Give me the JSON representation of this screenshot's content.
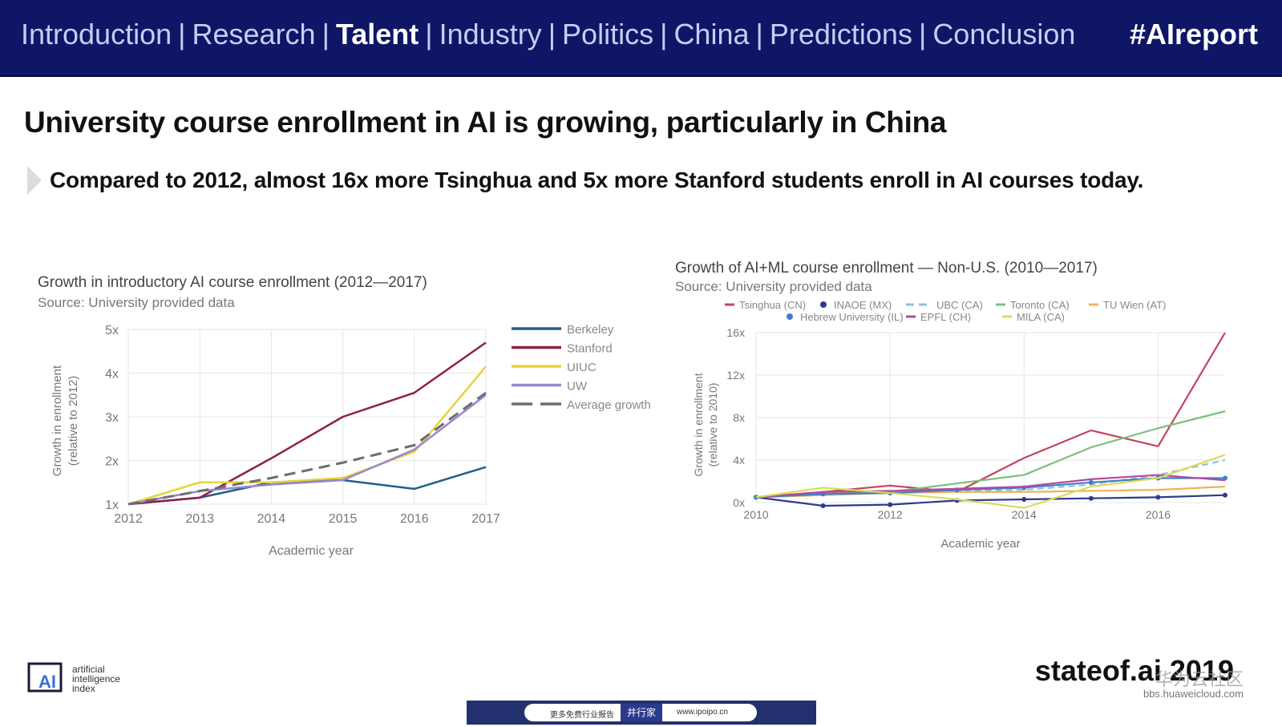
{
  "header": {
    "nav": [
      "Introduction",
      "Research",
      "Talent",
      "Industry",
      "Politics",
      "China",
      "Predictions",
      "Conclusion"
    ],
    "active_index": 2,
    "separator": "|",
    "hashtag": "#AIreport"
  },
  "slide": {
    "title": "University course enrollment in AI is growing, particularly in China",
    "subtitle": "Compared to 2012, almost 16x more Tsinghua and 5x more Stanford students enroll in AI courses today."
  },
  "charts": {
    "left": {
      "title": "Growth in introductory AI course enrollment (2012—2017)",
      "source": "Source: University provided data",
      "ylabel_line1": "Growth in enrollment",
      "ylabel_line2": "(relative to 2012)",
      "xlabel": "Academic year"
    },
    "right": {
      "title": "Growth of AI+ML course enrollment — Non-U.S. (2010—2017)",
      "source": "Source: University provided data",
      "ylabel_line1": "Growth in enrollment",
      "ylabel_line2": "(relative to 2010)",
      "xlabel": "Academic year"
    }
  },
  "chart_data": [
    {
      "type": "line",
      "title": "Growth in introductory AI course enrollment (2012—2017)",
      "xlabel": "Academic year",
      "ylabel": "Growth in enrollment (relative to 2012)",
      "x": [
        2012,
        2013,
        2014,
        2015,
        2016,
        2017
      ],
      "xticks": [
        "2012",
        "2013",
        "2014",
        "2015",
        "2016",
        "2017"
      ],
      "ylim": [
        1,
        5
      ],
      "yticks": [
        1,
        2,
        3,
        4,
        5
      ],
      "ytick_labels": [
        "1x",
        "2x",
        "3x",
        "4x",
        "5x"
      ],
      "grid": true,
      "legend_position": "right",
      "series": [
        {
          "name": "Berkeley",
          "color": "#1f5f8b",
          "dash": false,
          "values": [
            1.0,
            1.15,
            1.5,
            1.55,
            1.35,
            1.85
          ]
        },
        {
          "name": "Stanford",
          "color": "#8e1f4c",
          "dash": false,
          "values": [
            1.0,
            1.15,
            2.05,
            3.0,
            3.55,
            4.7
          ]
        },
        {
          "name": "UIUC",
          "color": "#e8d33a",
          "dash": false,
          "values": [
            1.0,
            1.5,
            1.5,
            1.6,
            2.2,
            4.15
          ]
        },
        {
          "name": "UW",
          "color": "#9a86cf",
          "dash": false,
          "values": [
            1.0,
            1.3,
            1.45,
            1.55,
            2.25,
            3.5
          ]
        },
        {
          "name": "Average growth",
          "color": "#6d6d6d",
          "dash": true,
          "values": [
            1.0,
            1.3,
            1.6,
            1.95,
            2.35,
            3.55
          ]
        }
      ]
    },
    {
      "type": "line",
      "title": "Growth of AI+ML course enrollment — Non-U.S. (2010—2017)",
      "xlabel": "Academic year",
      "ylabel": "Growth in enrollment (relative to 2010)",
      "x": [
        2010,
        2011,
        2012,
        2013,
        2014,
        2015,
        2016,
        2017
      ],
      "xticks": [
        "2010",
        "2012",
        "2014",
        "2016"
      ],
      "xtick_values": [
        2010,
        2012,
        2014,
        2016
      ],
      "ylim": [
        0,
        16
      ],
      "yticks": [
        0,
        4,
        8,
        12,
        16
      ],
      "ytick_labels": [
        "0x",
        "4x",
        "8x",
        "12x",
        "16x"
      ],
      "grid": true,
      "legend_position": "top",
      "series": [
        {
          "name": "Tsinghua (CN)",
          "color": "#c2455f",
          "dash": false,
          "marker": false,
          "values": [
            0.5,
            1.0,
            1.6,
            1.0,
            4.2,
            6.8,
            5.3,
            16.0
          ]
        },
        {
          "name": "INAOE (MX)",
          "color": "#2e3a8c",
          "dash": false,
          "marker": true,
          "values": [
            0.5,
            -0.3,
            -0.2,
            0.2,
            0.3,
            0.4,
            0.5,
            0.7
          ]
        },
        {
          "name": "UBC (CA)",
          "color": "#8fc1d6",
          "dash": true,
          "marker": false,
          "values": [
            0.5,
            0.9,
            1.0,
            1.1,
            1.2,
            1.7,
            2.6,
            4.0
          ]
        },
        {
          "name": "Toronto (CA)",
          "color": "#7fbf7f",
          "dash": false,
          "marker": false,
          "values": [
            0.5,
            0.9,
            1.0,
            1.8,
            2.6,
            5.2,
            7.0,
            8.6
          ]
        },
        {
          "name": "TU Wien (AT)",
          "color": "#f0b15a",
          "dash": false,
          "marker": false,
          "values": [
            0.5,
            0.7,
            0.9,
            1.0,
            1.0,
            1.1,
            1.2,
            1.5
          ]
        },
        {
          "name": "Hebrew University (IL)",
          "color": "#3f7fc8",
          "dash": false,
          "marker": true,
          "values": [
            0.5,
            0.8,
            0.9,
            1.2,
            1.4,
            1.9,
            2.3,
            2.3
          ]
        },
        {
          "name": "EPFL (CH)",
          "color": "#b44aa0",
          "dash": false,
          "marker": false,
          "values": [
            0.5,
            1.0,
            1.1,
            1.3,
            1.5,
            2.2,
            2.6,
            2.1
          ]
        },
        {
          "name": "MILA (CA)",
          "color": "#d8dd55",
          "dash": false,
          "marker": false,
          "values": [
            0.5,
            1.4,
            0.9,
            0.3,
            -0.5,
            1.5,
            2.3,
            4.5
          ]
        }
      ]
    }
  ],
  "footer": {
    "logo_letters": "AI",
    "logo_text": [
      "artificial",
      "intelligence",
      "index"
    ],
    "brand": "stateof.ai 2019",
    "watermark": "华为云社区",
    "watermark_url": "bbs.huaweicloud.com",
    "banner_left": "更多免费行业报告",
    "banner_mid": "井行家",
    "banner_right": "www.ipoipo.cn"
  }
}
